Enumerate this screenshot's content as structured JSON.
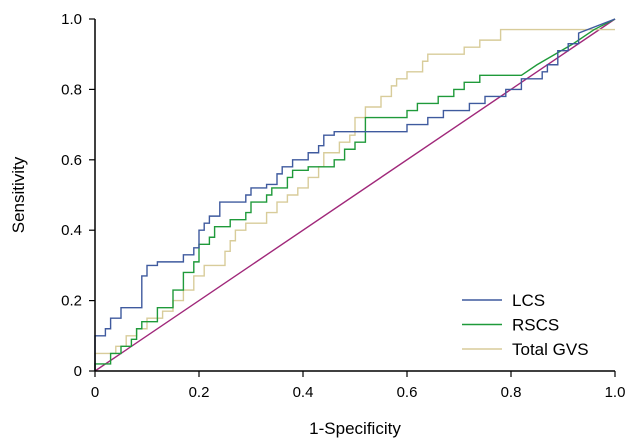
{
  "chart_data": {
    "type": "line",
    "xlabel": "1-Specificity",
    "ylabel": "Sensitivity",
    "xlim": [
      0,
      1
    ],
    "ylim": [
      0,
      1
    ],
    "x_ticks": [
      "0",
      "0.2",
      "0.4",
      "0.6",
      "0.8",
      "1.0"
    ],
    "y_ticks": [
      "0",
      "0.2",
      "0.4",
      "0.6",
      "0.8",
      "1.0"
    ],
    "grid": false,
    "legend_position": "bottom-right",
    "reference_line": {
      "points": [
        [
          0,
          0
        ],
        [
          1,
          1
        ]
      ],
      "color": "#a0287a"
    },
    "series": [
      {
        "name": "LCS",
        "color": "#3f5a9e",
        "points": [
          [
            0,
            0
          ],
          [
            0,
            0.1
          ],
          [
            0.02,
            0.1
          ],
          [
            0.02,
            0.12
          ],
          [
            0.03,
            0.12
          ],
          [
            0.03,
            0.15
          ],
          [
            0.05,
            0.15
          ],
          [
            0.05,
            0.18
          ],
          [
            0.09,
            0.18
          ],
          [
            0.09,
            0.27
          ],
          [
            0.1,
            0.27
          ],
          [
            0.1,
            0.3
          ],
          [
            0.12,
            0.3
          ],
          [
            0.12,
            0.31
          ],
          [
            0.17,
            0.31
          ],
          [
            0.17,
            0.33
          ],
          [
            0.19,
            0.33
          ],
          [
            0.19,
            0.35
          ],
          [
            0.2,
            0.35
          ],
          [
            0.2,
            0.4
          ],
          [
            0.21,
            0.4
          ],
          [
            0.21,
            0.42
          ],
          [
            0.22,
            0.42
          ],
          [
            0.22,
            0.44
          ],
          [
            0.24,
            0.44
          ],
          [
            0.24,
            0.48
          ],
          [
            0.29,
            0.48
          ],
          [
            0.29,
            0.5
          ],
          [
            0.3,
            0.5
          ],
          [
            0.3,
            0.52
          ],
          [
            0.33,
            0.52
          ],
          [
            0.33,
            0.53
          ],
          [
            0.35,
            0.53
          ],
          [
            0.35,
            0.56
          ],
          [
            0.36,
            0.56
          ],
          [
            0.36,
            0.58
          ],
          [
            0.38,
            0.58
          ],
          [
            0.38,
            0.6
          ],
          [
            0.41,
            0.6
          ],
          [
            0.41,
            0.62
          ],
          [
            0.43,
            0.62
          ],
          [
            0.43,
            0.64
          ],
          [
            0.44,
            0.64
          ],
          [
            0.44,
            0.67
          ],
          [
            0.46,
            0.67
          ],
          [
            0.46,
            0.68
          ],
          [
            0.6,
            0.68
          ],
          [
            0.6,
            0.7
          ],
          [
            0.64,
            0.7
          ],
          [
            0.64,
            0.72
          ],
          [
            0.67,
            0.72
          ],
          [
            0.67,
            0.74
          ],
          [
            0.72,
            0.74
          ],
          [
            0.72,
            0.76
          ],
          [
            0.75,
            0.76
          ],
          [
            0.75,
            0.78
          ],
          [
            0.79,
            0.78
          ],
          [
            0.79,
            0.8
          ],
          [
            0.82,
            0.8
          ],
          [
            0.82,
            0.83
          ],
          [
            0.86,
            0.83
          ],
          [
            0.86,
            0.85
          ],
          [
            0.87,
            0.85
          ],
          [
            0.87,
            0.87
          ],
          [
            0.89,
            0.87
          ],
          [
            0.89,
            0.91
          ],
          [
            0.91,
            0.91
          ],
          [
            0.91,
            0.93
          ],
          [
            0.93,
            0.93
          ],
          [
            0.93,
            0.96
          ],
          [
            1,
            1
          ]
        ]
      },
      {
        "name": "RSCS",
        "color": "#1f9a3a",
        "points": [
          [
            0,
            0
          ],
          [
            0,
            0.02
          ],
          [
            0.03,
            0.02
          ],
          [
            0.03,
            0.05
          ],
          [
            0.05,
            0.05
          ],
          [
            0.05,
            0.07
          ],
          [
            0.07,
            0.07
          ],
          [
            0.07,
            0.09
          ],
          [
            0.08,
            0.09
          ],
          [
            0.08,
            0.12
          ],
          [
            0.09,
            0.12
          ],
          [
            0.09,
            0.14
          ],
          [
            0.12,
            0.14
          ],
          [
            0.12,
            0.18
          ],
          [
            0.15,
            0.18
          ],
          [
            0.15,
            0.23
          ],
          [
            0.17,
            0.23
          ],
          [
            0.17,
            0.28
          ],
          [
            0.19,
            0.28
          ],
          [
            0.19,
            0.31
          ],
          [
            0.2,
            0.31
          ],
          [
            0.2,
            0.36
          ],
          [
            0.22,
            0.36
          ],
          [
            0.22,
            0.38
          ],
          [
            0.23,
            0.38
          ],
          [
            0.23,
            0.41
          ],
          [
            0.26,
            0.41
          ],
          [
            0.26,
            0.43
          ],
          [
            0.29,
            0.43
          ],
          [
            0.29,
            0.45
          ],
          [
            0.3,
            0.45
          ],
          [
            0.3,
            0.48
          ],
          [
            0.33,
            0.48
          ],
          [
            0.33,
            0.5
          ],
          [
            0.34,
            0.5
          ],
          [
            0.34,
            0.52
          ],
          [
            0.37,
            0.52
          ],
          [
            0.37,
            0.55
          ],
          [
            0.38,
            0.55
          ],
          [
            0.38,
            0.57
          ],
          [
            0.41,
            0.57
          ],
          [
            0.41,
            0.58
          ],
          [
            0.46,
            0.58
          ],
          [
            0.46,
            0.6
          ],
          [
            0.48,
            0.6
          ],
          [
            0.48,
            0.63
          ],
          [
            0.5,
            0.63
          ],
          [
            0.5,
            0.65
          ],
          [
            0.52,
            0.65
          ],
          [
            0.52,
            0.72
          ],
          [
            0.6,
            0.72
          ],
          [
            0.6,
            0.74
          ],
          [
            0.62,
            0.74
          ],
          [
            0.62,
            0.76
          ],
          [
            0.66,
            0.76
          ],
          [
            0.66,
            0.78
          ],
          [
            0.69,
            0.78
          ],
          [
            0.69,
            0.8
          ],
          [
            0.71,
            0.8
          ],
          [
            0.71,
            0.82
          ],
          [
            0.74,
            0.82
          ],
          [
            0.74,
            0.84
          ],
          [
            0.82,
            0.84
          ],
          [
            0.85,
            0.87
          ],
          [
            0.92,
            0.93
          ],
          [
            0.96,
            0.97
          ],
          [
            1,
            1
          ]
        ]
      },
      {
        "name": "Total GVS",
        "color": "#d8cc9a",
        "points": [
          [
            0,
            0
          ],
          [
            0,
            0.05
          ],
          [
            0.04,
            0.05
          ],
          [
            0.04,
            0.07
          ],
          [
            0.06,
            0.07
          ],
          [
            0.06,
            0.1
          ],
          [
            0.08,
            0.1
          ],
          [
            0.08,
            0.12
          ],
          [
            0.1,
            0.12
          ],
          [
            0.1,
            0.15
          ],
          [
            0.13,
            0.15
          ],
          [
            0.13,
            0.17
          ],
          [
            0.15,
            0.17
          ],
          [
            0.15,
            0.2
          ],
          [
            0.17,
            0.2
          ],
          [
            0.17,
            0.23
          ],
          [
            0.19,
            0.23
          ],
          [
            0.19,
            0.27
          ],
          [
            0.21,
            0.27
          ],
          [
            0.21,
            0.3
          ],
          [
            0.25,
            0.3
          ],
          [
            0.25,
            0.34
          ],
          [
            0.26,
            0.34
          ],
          [
            0.26,
            0.37
          ],
          [
            0.27,
            0.37
          ],
          [
            0.27,
            0.4
          ],
          [
            0.29,
            0.4
          ],
          [
            0.29,
            0.42
          ],
          [
            0.33,
            0.42
          ],
          [
            0.33,
            0.45
          ],
          [
            0.35,
            0.45
          ],
          [
            0.35,
            0.48
          ],
          [
            0.37,
            0.48
          ],
          [
            0.37,
            0.5
          ],
          [
            0.39,
            0.5
          ],
          [
            0.39,
            0.52
          ],
          [
            0.41,
            0.52
          ],
          [
            0.41,
            0.55
          ],
          [
            0.43,
            0.55
          ],
          [
            0.43,
            0.58
          ],
          [
            0.44,
            0.58
          ],
          [
            0.44,
            0.62
          ],
          [
            0.47,
            0.62
          ],
          [
            0.47,
            0.65
          ],
          [
            0.49,
            0.65
          ],
          [
            0.49,
            0.67
          ],
          [
            0.5,
            0.67
          ],
          [
            0.5,
            0.72
          ],
          [
            0.52,
            0.72
          ],
          [
            0.52,
            0.75
          ],
          [
            0.55,
            0.75
          ],
          [
            0.55,
            0.78
          ],
          [
            0.57,
            0.78
          ],
          [
            0.57,
            0.81
          ],
          [
            0.58,
            0.81
          ],
          [
            0.58,
            0.83
          ],
          [
            0.6,
            0.83
          ],
          [
            0.6,
            0.85
          ],
          [
            0.63,
            0.85
          ],
          [
            0.63,
            0.88
          ],
          [
            0.64,
            0.88
          ],
          [
            0.64,
            0.9
          ],
          [
            0.71,
            0.9
          ],
          [
            0.71,
            0.92
          ],
          [
            0.74,
            0.92
          ],
          [
            0.74,
            0.94
          ],
          [
            0.78,
            0.94
          ],
          [
            0.78,
            0.97
          ],
          [
            1,
            0.97
          ]
        ]
      }
    ]
  }
}
